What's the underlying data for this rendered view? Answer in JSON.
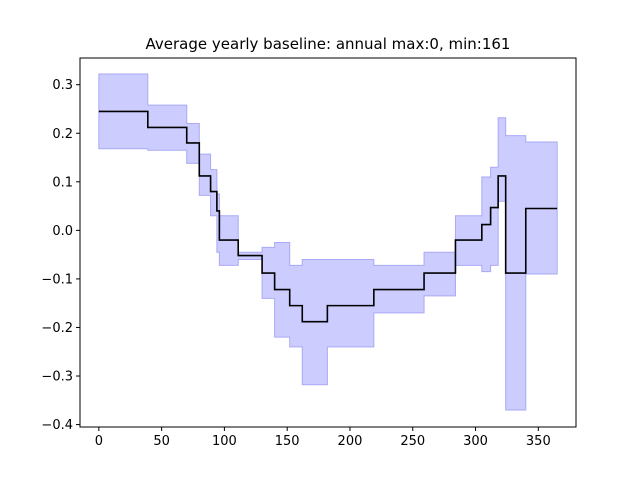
{
  "chart_data": {
    "type": "line",
    "title": "Average yearly baseline: annual max:0, min:161",
    "xlabel": "",
    "ylabel": "",
    "xlim": [
      -15,
      380
    ],
    "ylim": [
      -0.405,
      0.355
    ],
    "x_ticks": [
      0,
      50,
      100,
      150,
      200,
      250,
      300,
      350
    ],
    "y_ticks": [
      -0.4,
      -0.3,
      -0.2,
      -0.1,
      0.0,
      0.1,
      0.2,
      0.3
    ],
    "y_tick_labels": [
      "−0.4",
      "−0.3",
      "−0.2",
      "−0.1",
      "0.0",
      "0.1",
      "0.2",
      "0.3"
    ],
    "grid": false,
    "line_color": "#000000",
    "band_fill_color": "#ccccff",
    "band_edge_color": "#a9a9f5",
    "series": [
      {
        "x": [
          0,
          39,
          39,
          70,
          70,
          80,
          80,
          89,
          89,
          94,
          94,
          96,
          96,
          111,
          111,
          130,
          130,
          140,
          140,
          152,
          152,
          162,
          162,
          182,
          182,
          219,
          219,
          259,
          259,
          284,
          284,
          305,
          305,
          312,
          312,
          318,
          318,
          324,
          324,
          340,
          340,
          350,
          350,
          365
        ],
        "y": [
          0.245,
          0.245,
          0.212,
          0.212,
          0.18,
          0.18,
          0.112,
          0.112,
          0.08,
          0.08,
          0.04,
          0.04,
          -0.02,
          -0.02,
          -0.052,
          -0.052,
          -0.088,
          -0.088,
          -0.122,
          -0.122,
          -0.155,
          -0.155,
          -0.188,
          -0.188,
          -0.155,
          -0.155,
          -0.122,
          -0.122,
          -0.088,
          -0.088,
          -0.02,
          -0.02,
          0.012,
          0.012,
          0.047,
          0.047,
          0.112,
          0.112,
          -0.088,
          -0.088,
          0.045,
          0.045,
          0.045,
          0.045
        ]
      }
    ],
    "band": {
      "x": [
        0,
        39,
        39,
        70,
        70,
        80,
        80,
        89,
        89,
        94,
        94,
        96,
        96,
        111,
        111,
        130,
        130,
        140,
        140,
        152,
        152,
        162,
        162,
        182,
        182,
        219,
        219,
        259,
        259,
        284,
        284,
        305,
        305,
        312,
        312,
        318,
        318,
        324,
        324,
        340,
        340,
        350,
        350,
        365
      ],
      "upper": [
        0.322,
        0.322,
        0.258,
        0.258,
        0.22,
        0.22,
        0.157,
        0.157,
        0.125,
        0.125,
        0.075,
        0.075,
        0.03,
        0.03,
        -0.045,
        -0.045,
        -0.035,
        -0.035,
        -0.025,
        -0.025,
        -0.072,
        -0.072,
        -0.06,
        -0.06,
        -0.06,
        -0.06,
        -0.072,
        -0.072,
        -0.045,
        -0.045,
        0.03,
        0.03,
        0.11,
        0.11,
        0.13,
        0.13,
        0.232,
        0.232,
        0.195,
        0.195,
        0.182,
        0.182,
        0.182,
        0.182
      ],
      "lower": [
        0.168,
        0.168,
        0.165,
        0.165,
        0.138,
        0.138,
        0.072,
        0.072,
        0.03,
        0.03,
        -0.045,
        -0.045,
        -0.072,
        -0.072,
        -0.06,
        -0.06,
        -0.14,
        -0.14,
        -0.22,
        -0.22,
        -0.24,
        -0.24,
        -0.318,
        -0.318,
        -0.24,
        -0.24,
        -0.17,
        -0.17,
        -0.135,
        -0.135,
        -0.072,
        -0.072,
        -0.085,
        -0.085,
        -0.072,
        -0.072,
        0.06,
        0.06,
        -0.37,
        -0.37,
        -0.09,
        -0.09,
        -0.09,
        -0.09
      ]
    }
  }
}
